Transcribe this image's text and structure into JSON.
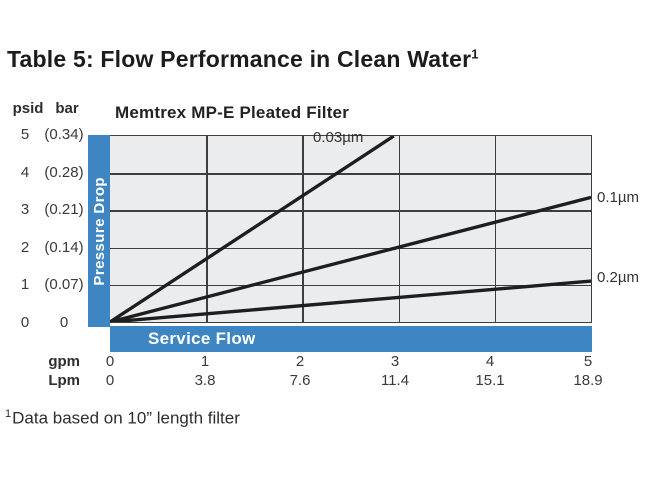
{
  "header": {
    "title": "Table 5: Flow Performance in Clean Water",
    "superscript_marker": "1"
  },
  "chart_data": {
    "type": "line",
    "title": "Memtrex MP-E Pleated Filter",
    "xlabel": "Service Flow",
    "ylabel": "Pressure Drop",
    "x_units": [
      "gpm",
      "Lpm"
    ],
    "y_units": [
      "psid",
      "bar"
    ],
    "xlim": [
      0,
      5
    ],
    "ylim": [
      0,
      5
    ],
    "grid": true,
    "legend_position": "labels-at-line-ends",
    "xticks": {
      "gpm": [
        "0",
        "1",
        "2",
        "3",
        "4",
        "5"
      ],
      "lpm": [
        "0",
        "3.8",
        "7.6",
        "11.4",
        "15.1",
        "18.9"
      ]
    },
    "yticks": {
      "psid": [
        "5",
        "4",
        "3",
        "2",
        "1",
        "0"
      ],
      "bar": [
        "(0.34)",
        "(0.28)",
        "(0.21)",
        "(0.14)",
        "(0.07)",
        "0"
      ]
    },
    "series": [
      {
        "name": "0.03µm",
        "x": [
          0,
          2.95
        ],
        "y": [
          0,
          5
        ]
      },
      {
        "name": "0.1µm",
        "x": [
          0,
          5
        ],
        "y": [
          0,
          3.35
        ]
      },
      {
        "name": "0.2µm",
        "x": [
          0,
          5
        ],
        "y": [
          0,
          1.1
        ]
      }
    ]
  },
  "footnote": {
    "marker": "1",
    "text": "Data based on 10” length filter"
  },
  "colors": {
    "accent_blue": "#3e86c3",
    "plot_background": "#ebeced",
    "grid_line": "#3e3e3e",
    "data_line": "#1e1e1e"
  }
}
